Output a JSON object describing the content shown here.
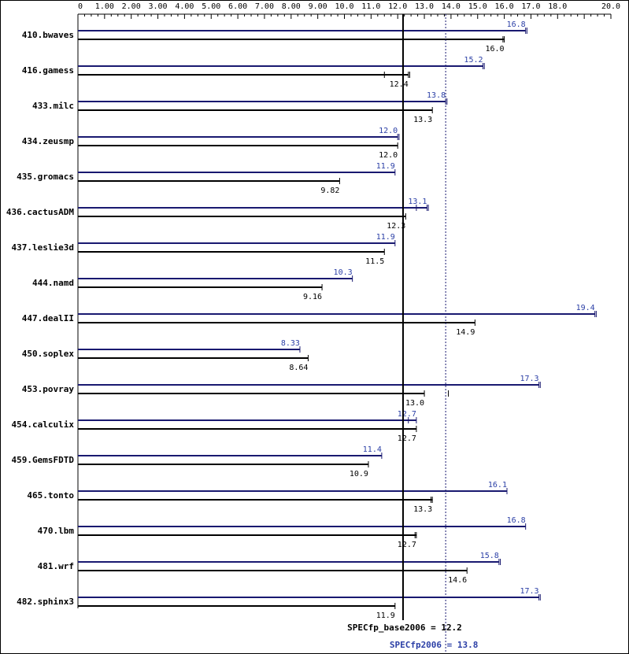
{
  "colors": {
    "peak": "#191970",
    "base": "#000000",
    "peak_text": "#2b3fa6",
    "axis": "#000000"
  },
  "chart_data": {
    "type": "bar",
    "orientation": "horizontal",
    "xlim": [
      0,
      20
    ],
    "xticks": [
      0,
      1,
      2,
      3,
      4,
      5,
      6,
      7,
      8,
      9,
      10,
      11,
      12,
      13,
      14,
      15,
      16,
      17,
      18,
      20
    ],
    "xtick_labels": [
      "0",
      "1.00",
      "2.00",
      "3.00",
      "4.00",
      "5.00",
      "6.00",
      "7.00",
      "8.00",
      "9.00",
      "10.0",
      "11.0",
      "12.0",
      "13.0",
      "14.0",
      "15.0",
      "16.0",
      "17.0",
      "18.0",
      "20.0"
    ],
    "minor_step": 0.25,
    "categories": [
      "410.bwaves",
      "416.gamess",
      "433.milc",
      "434.zeusmp",
      "435.gromacs",
      "436.cactusADM",
      "437.leslie3d",
      "444.namd",
      "447.dealII",
      "450.soplex",
      "453.povray",
      "454.calculix",
      "459.GemsFDTD",
      "465.tonto",
      "470.lbm",
      "481.wrf",
      "482.sphinx3"
    ],
    "series": [
      {
        "name": "peak",
        "values": [
          16.8,
          15.2,
          13.8,
          12.0,
          11.9,
          13.1,
          11.9,
          10.3,
          19.4,
          8.33,
          17.3,
          12.7,
          11.4,
          16.1,
          16.8,
          15.8,
          17.3
        ],
        "labels": [
          "16.8",
          "15.2",
          "13.8",
          "12.0",
          "11.9",
          "13.1",
          "11.9",
          "10.3",
          "19.4",
          "8.33",
          "17.3",
          "12.7",
          "11.4",
          "16.1",
          "16.8",
          "15.8",
          "17.3"
        ],
        "run_marks": [
          [
            16.8,
            16.85
          ],
          [
            15.2,
            15.25
          ],
          [
            13.8,
            13.85
          ],
          [
            12.0,
            12.05
          ],
          [
            11.9
          ],
          [
            12.7,
            13.1,
            13.15
          ],
          [
            11.9
          ],
          [
            10.3
          ],
          [
            19.4,
            19.45
          ],
          [
            8.33
          ],
          [
            17.3,
            17.35
          ],
          [
            12.4,
            12.7
          ],
          [
            11.4
          ],
          [
            16.1
          ],
          [
            16.8
          ],
          [
            15.8,
            15.85
          ],
          [
            17.3,
            17.35
          ]
        ]
      },
      {
        "name": "base",
        "values": [
          16.0,
          12.4,
          13.3,
          12.0,
          9.82,
          12.3,
          11.5,
          9.16,
          14.9,
          8.64,
          13.0,
          12.7,
          10.9,
          13.3,
          12.7,
          14.6,
          11.9
        ],
        "labels": [
          "16.0",
          "12.4",
          "13.3",
          "12.0",
          "9.82",
          "12.3",
          "11.5",
          "9.16",
          "14.9",
          "8.64",
          "13.0",
          "12.7",
          "10.9",
          "13.3",
          "12.7",
          "14.6",
          "11.9"
        ],
        "run_marks": [
          [
            15.95,
            16.0
          ],
          [
            11.5,
            12.4,
            12.45
          ],
          [
            13.3
          ],
          [
            12.0
          ],
          [
            9.82
          ],
          [
            12.3
          ],
          [
            11.5
          ],
          [
            9.16
          ],
          [
            14.9
          ],
          [
            8.64
          ],
          [
            12.2,
            13.0,
            13.9
          ],
          [
            12.7
          ],
          [
            10.9
          ],
          [
            13.25,
            13.3
          ],
          [
            12.65,
            12.7
          ],
          [
            14.6
          ],
          [
            11.9
          ]
        ]
      }
    ],
    "reference_lines": [
      {
        "name": "base",
        "value": 12.2,
        "style": "solid",
        "label": "SPECfp_base2006 = 12.2"
      },
      {
        "name": "peak",
        "value": 13.8,
        "style": "dotted",
        "label": "SPECfp2006 = 13.8"
      }
    ]
  }
}
